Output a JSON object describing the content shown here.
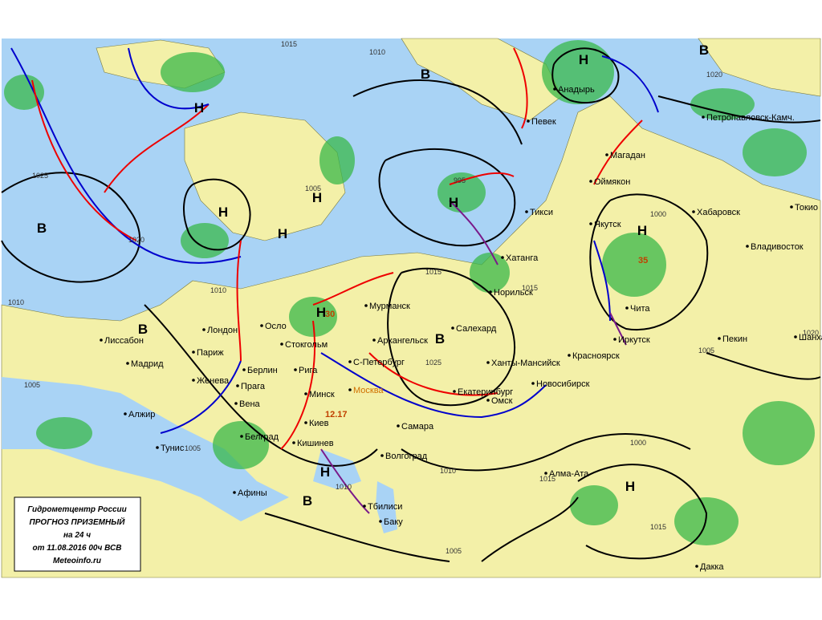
{
  "legend": {
    "lines": [
      "Гидрометцентр России",
      "ПРОГНОЗ ПРИЗЕМНЫЙ",
      "на 24 ч",
      "от 11.08.2016 00ч ВСВ",
      "Meteoinfo.ru"
    ]
  },
  "centers": [
    "В",
    "Н",
    "В",
    "Н",
    "Н",
    "В",
    "Н",
    "В",
    "Н",
    "Н",
    "В",
    "Н",
    "Н",
    "В",
    "Н",
    "Н"
  ],
  "isobar_labels": [
    "1010",
    "1020",
    "1025",
    "1020",
    "1015",
    "1005",
    "1010",
    "1010",
    "995",
    "1015",
    "1025",
    "1015",
    "1010",
    "1015",
    "1000",
    "1000",
    "1005",
    "1010",
    "1005",
    "1015",
    "1005",
    "1005",
    "1020"
  ],
  "cities": [
    "Лиссабон",
    "Мадрид",
    "Алжир",
    "Тунис",
    "Лондон",
    "Париж",
    "Женева",
    "Прага",
    "Вена",
    "Берлин",
    "Осло",
    "Стокгольм",
    "Рига",
    "С-Петербург",
    "Минск",
    "Киев",
    "Белград",
    "Кишинев",
    "Афины",
    "Москва",
    "Архангельск",
    "Мурманск",
    "Анадырь",
    "Певек",
    "Тикси",
    "Хатанга",
    "Норильск",
    "Салехард",
    "Ханты-Мансийск",
    "Екатеринбург",
    "Омск",
    "Новосибирск",
    "Красноярск",
    "Волгоград",
    "Самара",
    "Тбилиси",
    "Баку",
    "Алма-Ата",
    "Иркутск",
    "Чита",
    "Якутск",
    "Оймякон",
    "Магадан",
    "Петропавловск-Камч.",
    "Хабаровск",
    "Владивосток",
    "Пекин",
    "Шанхай",
    "Токио",
    "Дакка"
  ],
  "temperatures": [
    "12.17",
    "30",
    "35"
  ]
}
